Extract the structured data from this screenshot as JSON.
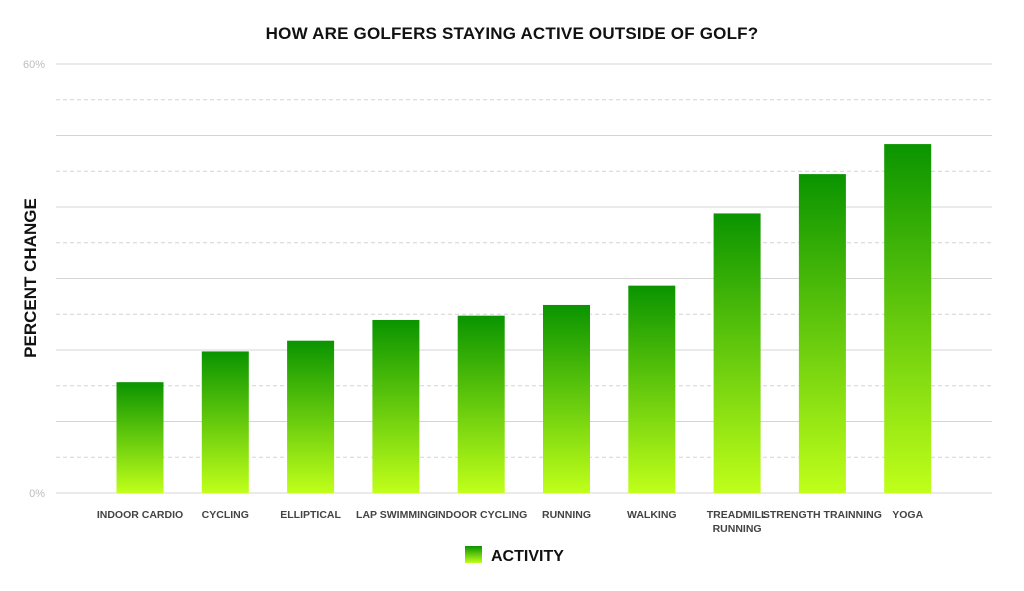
{
  "chart_data": {
    "type": "bar",
    "title": "HOW ARE GOLFERS STAYING ACTIVE OUTSIDE OF GOLF?",
    "ylabel": "PERCENT CHANGE",
    "xlabel": "",
    "ylim": [
      0,
      60
    ],
    "y_ticks": [
      "0%",
      "60%"
    ],
    "grid": true,
    "legend_position": "bottom-center",
    "categories": [
      [
        "INDOOR CARDIO"
      ],
      [
        "CYCLING"
      ],
      [
        "ELLIPTICAL"
      ],
      [
        "LAP SWIMMING"
      ],
      [
        "INDOOR CYCLING"
      ],
      [
        "RUNNING"
      ],
      [
        "WALKING"
      ],
      [
        "TREADMILL",
        "RUNNING"
      ],
      [
        "STRENGTH TRAINNING"
      ],
      [
        "YOGA"
      ]
    ],
    "series": [
      {
        "name": "ACTIVITY",
        "values": [
          15.5,
          19.8,
          21.3,
          24.2,
          24.8,
          26.3,
          29.0,
          39.1,
          44.6,
          48.8
        ]
      }
    ],
    "colors": {
      "bar_top": "#0a9400",
      "bar_bottom": "#c0ff1a",
      "grid": "#d4d4d4"
    }
  }
}
